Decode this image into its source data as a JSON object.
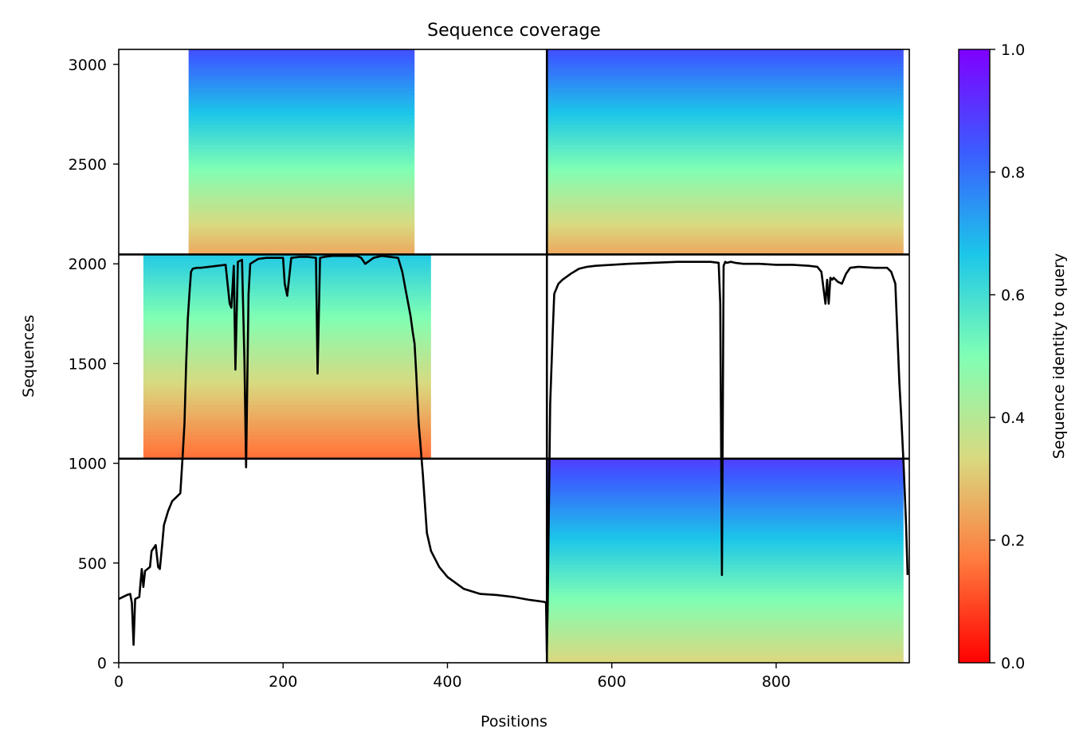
{
  "chart_data": {
    "type": "heatmap",
    "title": "Sequence coverage",
    "xlabel": "Positions",
    "ylabel": "Sequences",
    "xlim": [
      0,
      962
    ],
    "ylim": [
      0,
      3075
    ],
    "xticks": [
      0,
      200,
      400,
      600,
      800
    ],
    "yticks": [
      0,
      500,
      1000,
      1500,
      2000,
      2500,
      3000
    ],
    "grid": false,
    "colorbar": {
      "label": "Sequence identity to query",
      "range": [
        0.0,
        1.0
      ],
      "ticks": [
        "0.0",
        "0.2",
        "0.4",
        "0.6",
        "0.8",
        "1.0"
      ],
      "colormap": "rainbow_r",
      "colors": [
        "#ff0000",
        "#ff7b3e",
        "#d9d980",
        "#80ffb4",
        "#1cc6e9",
        "#3b5cff",
        "#7f00ff"
      ]
    },
    "block_boundaries": {
      "x": [
        521
      ],
      "y": [
        1023,
        2047
      ]
    },
    "coverage_blocks": [
      {
        "x": [
          0,
          521
        ],
        "y": [
          2047,
          3075
        ],
        "identity_top": 0.85,
        "identity_bottom": 0.25,
        "coverage_x": [
          85,
          360
        ]
      },
      {
        "x": [
          521,
          962
        ],
        "y": [
          2047,
          3075
        ],
        "identity_top": 0.85,
        "identity_bottom": 0.25,
        "coverage_x": [
          521,
          955
        ]
      },
      {
        "x": [
          0,
          521
        ],
        "y": [
          1023,
          2047
        ],
        "identity_top": 0.65,
        "identity_bottom": 0.15,
        "coverage_x": [
          30,
          380
        ]
      },
      {
        "x": [
          521,
          962
        ],
        "y": [
          0,
          1023
        ],
        "identity_top": 0.88,
        "identity_bottom": 0.33,
        "coverage_x": [
          521,
          955
        ]
      }
    ],
    "coverage_line": {
      "name": "coverage",
      "color": "#000000",
      "x": [
        0,
        5,
        10,
        14,
        16,
        18,
        20,
        25,
        28,
        30,
        32,
        35,
        38,
        40,
        45,
        48,
        50,
        53,
        55,
        60,
        65,
        70,
        75,
        78,
        80,
        82,
        84,
        86,
        88,
        90,
        95,
        100,
        110,
        120,
        130,
        135,
        137,
        140,
        142,
        145,
        150,
        153,
        155,
        158,
        160,
        170,
        180,
        190,
        200,
        202,
        205,
        210,
        220,
        230,
        240,
        242,
        245,
        250,
        260,
        270,
        280,
        290,
        295,
        300,
        310,
        320,
        330,
        340,
        345,
        350,
        355,
        358,
        360,
        362,
        365,
        370,
        375,
        380,
        390,
        400,
        410,
        420,
        440,
        460,
        480,
        500,
        510,
        518,
        520,
        521,
        522,
        525,
        528,
        530,
        535,
        540,
        550,
        560,
        570,
        580,
        600,
        620,
        650,
        680,
        700,
        720,
        730,
        732,
        734,
        736,
        738,
        740,
        745,
        750,
        760,
        780,
        800,
        820,
        840,
        850,
        855,
        860,
        862,
        864,
        866,
        868,
        870,
        875,
        880,
        885,
        890,
        900,
        920,
        935,
        940,
        945,
        950,
        952,
        955,
        958,
        960,
        962
      ],
      "y": [
        320,
        330,
        340,
        345,
        300,
        90,
        320,
        330,
        470,
        380,
        460,
        470,
        480,
        560,
        590,
        480,
        470,
        600,
        690,
        760,
        810,
        830,
        850,
        1050,
        1200,
        1500,
        1720,
        1850,
        1960,
        1975,
        1980,
        1980,
        1985,
        1990,
        1995,
        1800,
        1780,
        1990,
        1470,
        2010,
        2020,
        1500,
        980,
        1850,
        2000,
        2025,
        2030,
        2030,
        2030,
        1900,
        1840,
        2030,
        2035,
        2035,
        2030,
        1450,
        2030,
        2035,
        2040,
        2040,
        2040,
        2040,
        2030,
        2000,
        2030,
        2040,
        2035,
        2030,
        1960,
        1850,
        1740,
        1650,
        1600,
        1450,
        1200,
        950,
        650,
        560,
        480,
        430,
        400,
        370,
        345,
        340,
        330,
        315,
        310,
        305,
        300,
        50,
        300,
        1300,
        1650,
        1850,
        1900,
        1920,
        1950,
        1975,
        1985,
        1990,
        1995,
        2000,
        2005,
        2010,
        2010,
        2010,
        2005,
        1800,
        440,
        1990,
        2010,
        2005,
        2010,
        2005,
        2000,
        2000,
        1995,
        1995,
        1990,
        1985,
        1960,
        1800,
        1920,
        1800,
        1930,
        1920,
        1930,
        1910,
        1900,
        1950,
        1980,
        1985,
        1980,
        1980,
        1960,
        1900,
        1400,
        1250,
        1000,
        700,
        440
      ]
    }
  }
}
